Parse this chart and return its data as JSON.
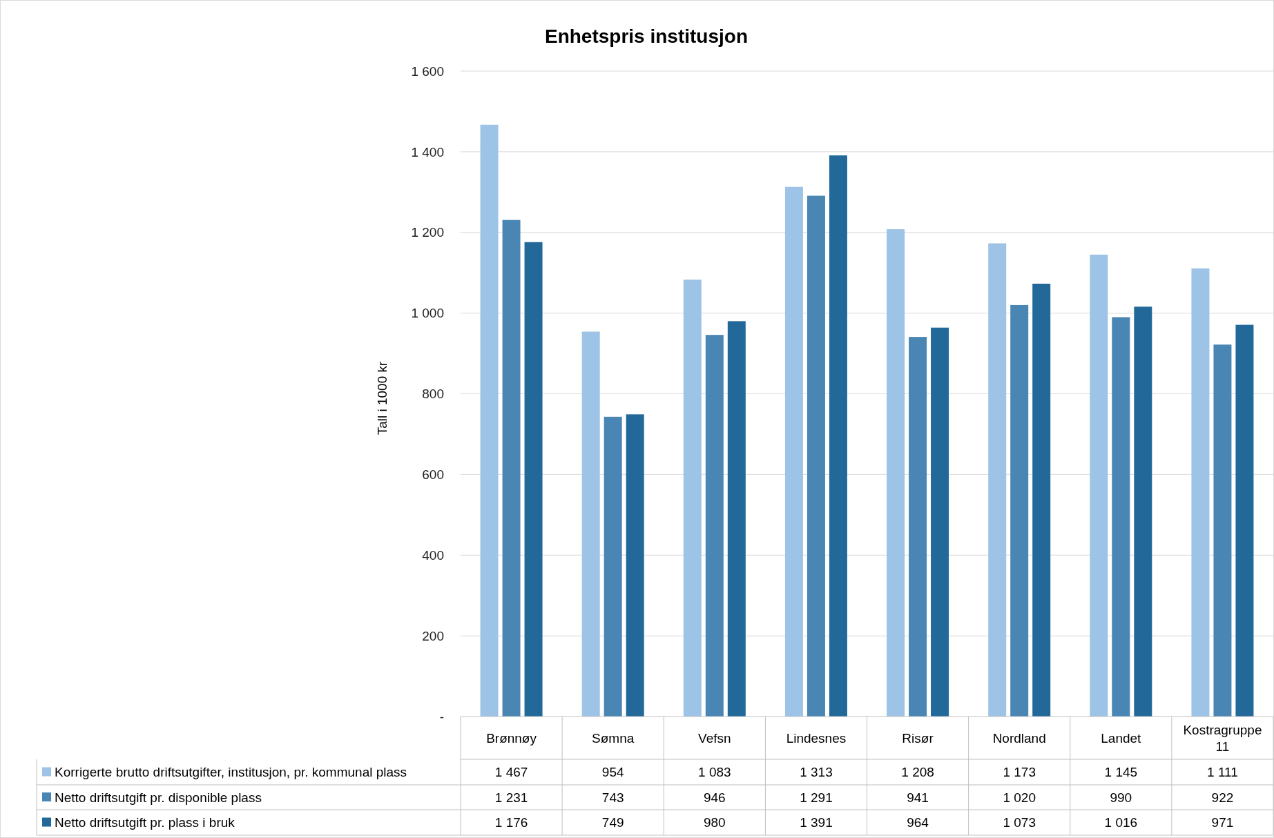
{
  "chart_data": {
    "type": "bar",
    "title": "Enhetspris institusjon",
    "ylabel": "Tall i 1000 kr",
    "categories": [
      "Brønnøy",
      "Sømna",
      "Vefsn",
      "Lindesnes",
      "Risør",
      "Nordland",
      "Landet",
      "Kostragruppe 11"
    ],
    "series": [
      {
        "name": "Korrigerte brutto driftsutgifter, institusjon, pr. kommunal plass",
        "color": "#9dc3e6",
        "values": [
          1467,
          954,
          1083,
          1313,
          1208,
          1173,
          1145,
          1111
        ],
        "value_labels": [
          "1 467",
          "954",
          "1 083",
          "1 313",
          "1 208",
          "1 173",
          "1 145",
          "1 111"
        ]
      },
      {
        "name": "Netto driftsutgift pr. disponible plass",
        "color": "#4a86b4",
        "values": [
          1231,
          743,
          946,
          1291,
          941,
          1020,
          990,
          922
        ],
        "value_labels": [
          "1 231",
          "743",
          "946",
          "1 291",
          "941",
          "1 020",
          "990",
          "922"
        ]
      },
      {
        "name": "Netto driftsutgift pr. plass i bruk",
        "color": "#22699a",
        "values": [
          1176,
          749,
          980,
          1391,
          964,
          1073,
          1016,
          971
        ],
        "value_labels": [
          "1 176",
          "749",
          "980",
          "1 391",
          "964",
          "1 073",
          "1 016",
          "971"
        ]
      }
    ],
    "ylim": [
      0,
      1600
    ],
    "yticks": [
      {
        "value": 0,
        "label": "-"
      },
      {
        "value": 200,
        "label": "200"
      },
      {
        "value": 400,
        "label": "400"
      },
      {
        "value": 600,
        "label": "600"
      },
      {
        "value": 800,
        "label": "800"
      },
      {
        "value": 1000,
        "label": "1 000"
      },
      {
        "value": 1200,
        "label": "1 200"
      },
      {
        "value": 1400,
        "label": "1 400"
      },
      {
        "value": 1600,
        "label": "1 600"
      }
    ],
    "grid": "y",
    "legend": "bottom left"
  }
}
